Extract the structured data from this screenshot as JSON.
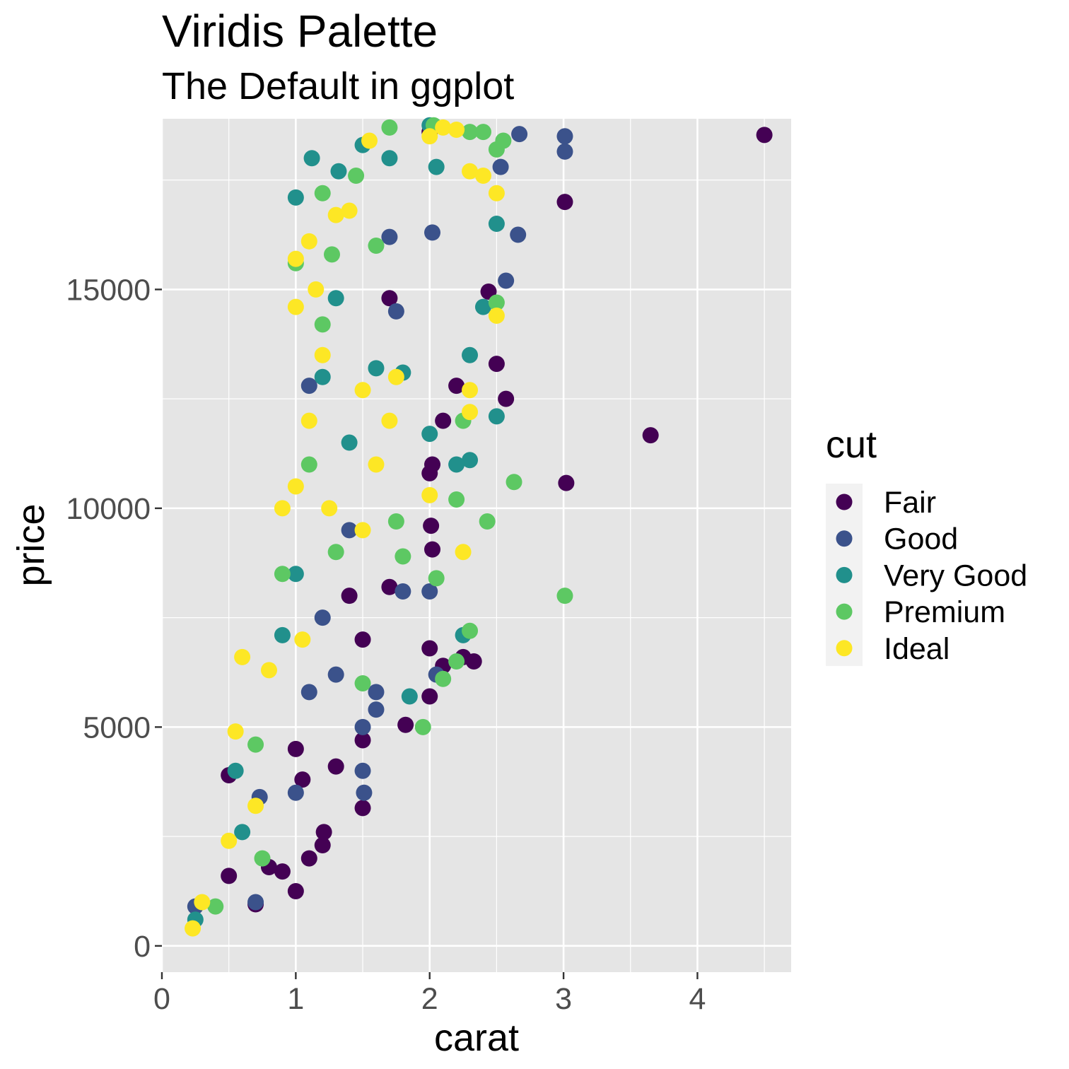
{
  "chart_data": {
    "type": "scatter",
    "title": "Viridis Palette",
    "subtitle": "The Default in ggplot",
    "xlabel": "carat",
    "ylabel": "price",
    "xlim": [
      0,
      4.7
    ],
    "ylim": [
      -600,
      18900
    ],
    "x_ticks": [
      0,
      1,
      2,
      3,
      4
    ],
    "x_tick_labels": [
      "0",
      "1",
      "2",
      "3",
      "4"
    ],
    "y_ticks": [
      0,
      5000,
      10000,
      15000
    ],
    "y_tick_labels": [
      "0",
      "5000",
      "10000",
      "15000"
    ],
    "grid": true,
    "legend": {
      "title": "cut",
      "position": "right",
      "entries": [
        "Fair",
        "Good",
        "Very Good",
        "Premium",
        "Ideal"
      ]
    },
    "colors": {
      "Fair": "#440154",
      "Good": "#3b528b",
      "Very Good": "#21908c",
      "Premium": "#5dc863",
      "Ideal": "#fde725",
      "panel_background": "#e5e5e5",
      "grid_line": "#ffffff"
    },
    "series": [
      {
        "name": "Fair",
        "points": [
          [
            4.5,
            18531
          ],
          [
            3.01,
            17000
          ],
          [
            3.65,
            11668
          ],
          [
            3.02,
            10577
          ],
          [
            2.33,
            6500
          ],
          [
            2.25,
            6600
          ],
          [
            2.0,
            6800
          ],
          [
            2.1,
            6400
          ],
          [
            2.0,
            5700
          ],
          [
            1.82,
            5050
          ],
          [
            2.01,
            9600
          ],
          [
            2.02,
            9060
          ],
          [
            2.0,
            10800
          ],
          [
            2.02,
            11000
          ],
          [
            2.44,
            14950
          ],
          [
            2.5,
            13300
          ],
          [
            2.57,
            12500
          ],
          [
            1.7,
            14800
          ],
          [
            1.7,
            8200
          ],
          [
            1.5,
            3150
          ],
          [
            2.0,
            18600
          ],
          [
            1.0,
            4500
          ],
          [
            1.05,
            3800
          ],
          [
            0.5,
            3900
          ],
          [
            0.5,
            1600
          ],
          [
            0.7,
            950
          ],
          [
            1.0,
            1250
          ],
          [
            1.2,
            2300
          ],
          [
            1.1,
            2000
          ],
          [
            0.9,
            1700
          ],
          [
            1.5,
            4700
          ],
          [
            1.3,
            4100
          ],
          [
            1.21,
            2600
          ],
          [
            0.8,
            1800
          ],
          [
            2.1,
            12000
          ],
          [
            2.2,
            12800
          ],
          [
            1.5,
            7000
          ],
          [
            1.4,
            8000
          ]
        ]
      },
      {
        "name": "Good",
        "points": [
          [
            2.67,
            18550
          ],
          [
            3.01,
            18500
          ],
          [
            3.01,
            18150
          ],
          [
            2.66,
            16250
          ],
          [
            2.57,
            15200
          ],
          [
            2.53,
            17800
          ],
          [
            2.0,
            8100
          ],
          [
            2.02,
            16300
          ],
          [
            1.7,
            16200
          ],
          [
            1.5,
            4000
          ],
          [
            1.51,
            3500
          ],
          [
            1.5,
            5000
          ],
          [
            1.6,
            5800
          ],
          [
            0.73,
            3400
          ],
          [
            0.25,
            900
          ],
          [
            0.7,
            1000
          ],
          [
            1.0,
            3500
          ],
          [
            1.75,
            14500
          ],
          [
            1.8,
            8100
          ],
          [
            1.3,
            6200
          ],
          [
            1.1,
            5800
          ],
          [
            1.2,
            7500
          ],
          [
            1.6,
            5400
          ],
          [
            2.05,
            6200
          ],
          [
            1.1,
            12800
          ],
          [
            1.4,
            9500
          ]
        ]
      },
      {
        "name": "Very Good",
        "points": [
          [
            1.5,
            18300
          ],
          [
            1.12,
            18000
          ],
          [
            1.0,
            17100
          ],
          [
            1.32,
            17700
          ],
          [
            1.7,
            18000
          ],
          [
            2.0,
            18750
          ],
          [
            2.05,
            17800
          ],
          [
            2.3,
            11100
          ],
          [
            2.2,
            11000
          ],
          [
            2.5,
            16500
          ],
          [
            2.5,
            12100
          ],
          [
            1.85,
            5700
          ],
          [
            1.6,
            13200
          ],
          [
            1.8,
            13100
          ],
          [
            2.3,
            13500
          ],
          [
            1.3,
            14800
          ],
          [
            1.2,
            13000
          ],
          [
            0.9,
            7100
          ],
          [
            0.55,
            4000
          ],
          [
            0.25,
            600
          ],
          [
            2.0,
            11700
          ],
          [
            2.25,
            7100
          ],
          [
            1.0,
            8500
          ],
          [
            0.6,
            2600
          ],
          [
            2.4,
            14600
          ],
          [
            1.4,
            11500
          ]
        ]
      },
      {
        "name": "Premium",
        "points": [
          [
            1.7,
            18700
          ],
          [
            2.03,
            18750
          ],
          [
            2.3,
            18600
          ],
          [
            2.4,
            18600
          ],
          [
            2.5,
            18200
          ],
          [
            2.55,
            18400
          ],
          [
            3.01,
            8000
          ],
          [
            2.63,
            10600
          ],
          [
            2.43,
            9700
          ],
          [
            2.2,
            10200
          ],
          [
            1.95,
            5000
          ],
          [
            2.3,
            7200
          ],
          [
            2.2,
            6500
          ],
          [
            1.0,
            15600
          ],
          [
            1.2,
            17200
          ],
          [
            1.27,
            15800
          ],
          [
            1.45,
            17600
          ],
          [
            1.6,
            16000
          ],
          [
            1.8,
            8900
          ],
          [
            2.05,
            8400
          ],
          [
            2.5,
            14700
          ],
          [
            1.2,
            14200
          ],
          [
            0.9,
            8500
          ],
          [
            0.7,
            4600
          ],
          [
            0.4,
            900
          ],
          [
            2.1,
            6100
          ],
          [
            1.75,
            9700
          ],
          [
            2.25,
            12000
          ],
          [
            1.5,
            6000
          ],
          [
            0.75,
            2000
          ],
          [
            1.1,
            11000
          ],
          [
            1.3,
            9000
          ]
        ]
      },
      {
        "name": "Ideal",
        "points": [
          [
            1.55,
            18400
          ],
          [
            2.1,
            18700
          ],
          [
            2.2,
            18650
          ],
          [
            2.3,
            17700
          ],
          [
            2.4,
            17600
          ],
          [
            2.5,
            17200
          ],
          [
            2.5,
            14400
          ],
          [
            2.3,
            12200
          ],
          [
            2.25,
            9000
          ],
          [
            2.0,
            10300
          ],
          [
            2.3,
            12700
          ],
          [
            1.0,
            15700
          ],
          [
            1.0,
            14600
          ],
          [
            1.1,
            16100
          ],
          [
            1.15,
            15000
          ],
          [
            1.3,
            16700
          ],
          [
            1.4,
            16800
          ],
          [
            1.0,
            10500
          ],
          [
            1.1,
            12000
          ],
          [
            1.2,
            13500
          ],
          [
            0.6,
            6600
          ],
          [
            0.55,
            4900
          ],
          [
            0.8,
            6300
          ],
          [
            0.23,
            400
          ],
          [
            0.3,
            1000
          ],
          [
            0.5,
            2400
          ],
          [
            1.5,
            9500
          ],
          [
            1.75,
            13000
          ],
          [
            2.0,
            18500
          ],
          [
            1.7,
            12000
          ],
          [
            0.9,
            10000
          ],
          [
            1.25,
            10000
          ],
          [
            1.6,
            11000
          ],
          [
            0.7,
            3200
          ],
          [
            1.05,
            7000
          ],
          [
            1.5,
            12700
          ]
        ]
      }
    ]
  }
}
